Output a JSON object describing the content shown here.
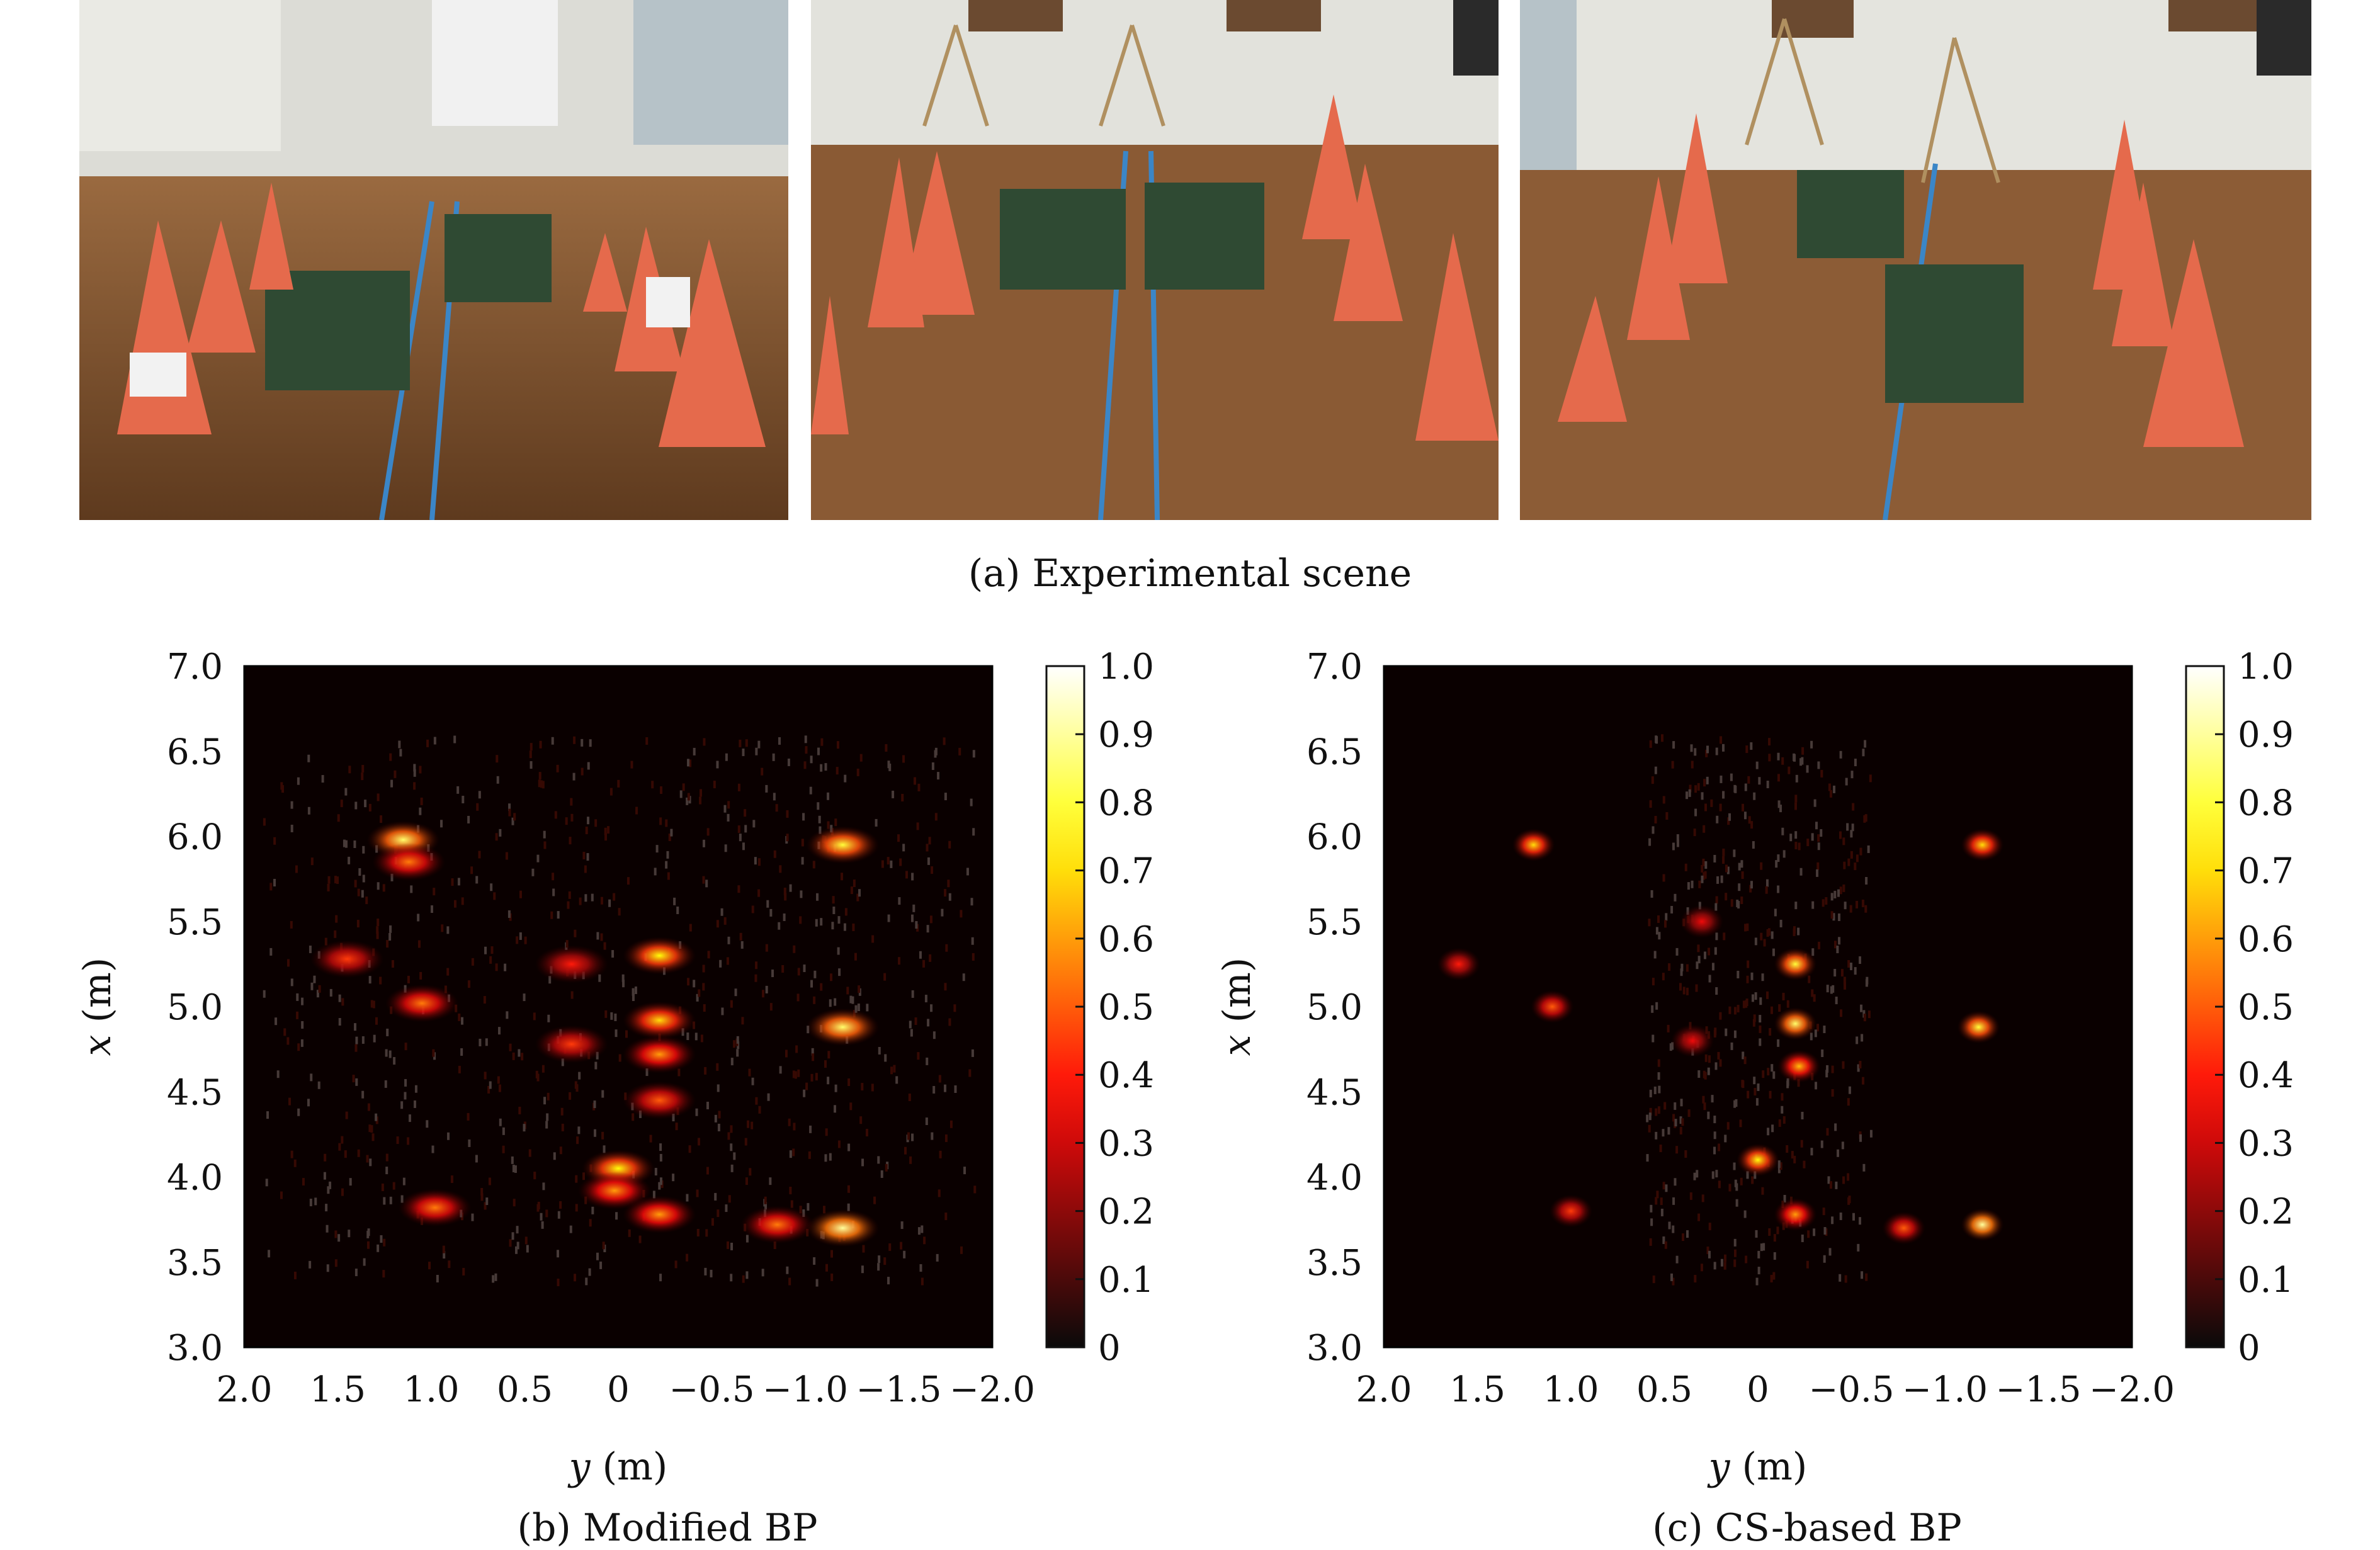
{
  "figure": {
    "captions": {
      "a": "(a) Experimental scene",
      "b": "(b) Modified BP",
      "c": "(c) CS-based BP"
    }
  },
  "chart_data": [
    {
      "type": "heatmap",
      "title": "(b) Modified BP",
      "xlabel_var": "y",
      "xlabel_unit": " (m)",
      "ylabel_var": "x",
      "ylabel_unit": " (m)",
      "xlim": [
        2.0,
        -2.0
      ],
      "ylim": [
        3.0,
        7.0
      ],
      "xticks": [
        "2.0",
        "1.5",
        "1.0",
        "0.5",
        "0",
        "−0.5",
        "−1.0",
        "−1.5",
        "−2.0"
      ],
      "yticks": [
        "7.0",
        "6.5",
        "6.0",
        "5.5",
        "5.0",
        "4.5",
        "4.0",
        "3.5",
        "3.0"
      ],
      "colorbar_ticks": [
        "1.0",
        "0.9",
        "0.8",
        "0.7",
        "0.6",
        "0.5",
        "0.4",
        "0.3",
        "0.2",
        "0.1",
        "0"
      ],
      "colormap": "hot",
      "hotspots": [
        {
          "y": 1.15,
          "x": 5.98,
          "v": 0.85
        },
        {
          "y": 1.12,
          "x": 5.85,
          "v": 0.55
        },
        {
          "y": 1.05,
          "x": 5.02,
          "v": 0.55
        },
        {
          "y": 1.45,
          "x": 5.28,
          "v": 0.45
        },
        {
          "y": 0.98,
          "x": 3.82,
          "v": 0.55
        },
        {
          "y": -1.2,
          "x": 5.95,
          "v": 0.8
        },
        {
          "y": -1.2,
          "x": 4.88,
          "v": 0.85
        },
        {
          "y": -1.2,
          "x": 3.7,
          "v": 0.9
        },
        {
          "y": -0.85,
          "x": 3.72,
          "v": 0.55
        },
        {
          "y": 0.0,
          "x": 4.05,
          "v": 0.75
        },
        {
          "y": 0.02,
          "x": 3.92,
          "v": 0.6
        },
        {
          "y": -0.22,
          "x": 5.3,
          "v": 0.75
        },
        {
          "y": -0.22,
          "x": 4.92,
          "v": 0.7
        },
        {
          "y": -0.22,
          "x": 4.72,
          "v": 0.6
        },
        {
          "y": -0.22,
          "x": 4.45,
          "v": 0.5
        },
        {
          "y": -0.22,
          "x": 3.78,
          "v": 0.6
        },
        {
          "y": 0.25,
          "x": 5.25,
          "v": 0.4
        },
        {
          "y": 0.25,
          "x": 4.78,
          "v": 0.45
        }
      ]
    },
    {
      "type": "heatmap",
      "title": "(c) CS-based BP",
      "xlabel_var": "y",
      "xlabel_unit": " (m)",
      "ylabel_var": "x",
      "ylabel_unit": " (m)",
      "xlim": [
        2.0,
        -2.0
      ],
      "ylim": [
        3.0,
        7.0
      ],
      "xticks": [
        "2.0",
        "1.5",
        "1.0",
        "0.5",
        "0",
        "−0.5",
        "−1.0",
        "−1.5",
        "−2.0"
      ],
      "yticks": [
        "7.0",
        "6.5",
        "6.0",
        "5.5",
        "5.0",
        "4.5",
        "4.0",
        "3.5",
        "3.0"
      ],
      "colorbar_ticks": [
        "1.0",
        "0.9",
        "0.8",
        "0.7",
        "0.6",
        "0.5",
        "0.4",
        "0.3",
        "0.2",
        "0.1",
        "0"
      ],
      "colormap": "hot",
      "hotspots": [
        {
          "y": 1.2,
          "x": 5.95,
          "v": 0.7
        },
        {
          "y": 1.1,
          "x": 5.0,
          "v": 0.5
        },
        {
          "y": 1.6,
          "x": 5.25,
          "v": 0.4
        },
        {
          "y": 1.0,
          "x": 3.8,
          "v": 0.45
        },
        {
          "y": -1.2,
          "x": 5.95,
          "v": 0.7
        },
        {
          "y": -1.18,
          "x": 4.88,
          "v": 0.8
        },
        {
          "y": -1.2,
          "x": 3.72,
          "v": 0.9
        },
        {
          "y": -0.78,
          "x": 3.7,
          "v": 0.5
        },
        {
          "y": 0.0,
          "x": 4.1,
          "v": 0.75
        },
        {
          "y": -0.2,
          "x": 5.25,
          "v": 0.8
        },
        {
          "y": -0.2,
          "x": 4.9,
          "v": 0.85
        },
        {
          "y": -0.22,
          "x": 4.65,
          "v": 0.65
        },
        {
          "y": -0.2,
          "x": 3.78,
          "v": 0.6
        },
        {
          "y": 0.3,
          "x": 5.5,
          "v": 0.35
        },
        {
          "y": 0.35,
          "x": 4.8,
          "v": 0.35
        }
      ]
    }
  ]
}
